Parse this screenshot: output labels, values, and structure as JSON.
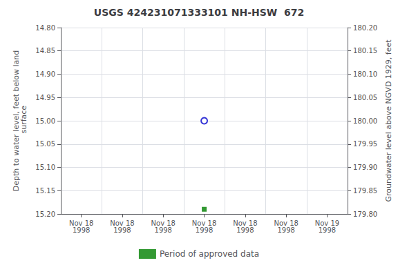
{
  "chart_data": {
    "type": "scatter",
    "title": "USGS 424231071333101 NH-HSW  672",
    "ylabel": "Depth to water level, feet below land\n surface",
    "y2label": "Groundwater level above NGVD 1929, feet",
    "categories": [
      "Nov 18\n1998",
      "Nov 18\n1998",
      "Nov 18\n1998",
      "Nov 18\n1998",
      "Nov 18\n1998",
      "Nov 18\n1998",
      "Nov 19\n1998"
    ],
    "series": [
      {
        "color": "#0000cc",
        "marker": "circle_open",
        "values": [
          null,
          null,
          null,
          15.0,
          null,
          null,
          null
        ]
      },
      {
        "name": "Period of approved data",
        "color": "#008000",
        "marker": "square",
        "values": [
          null,
          null,
          null,
          15.19,
          null,
          null,
          null
        ]
      }
    ],
    "ylim": [
      15.2,
      14.8
    ],
    "yticks": [
      {
        "value": 14.8,
        "label": "14.80"
      },
      {
        "value": 14.85,
        "label": "14.85"
      },
      {
        "value": 14.9,
        "label": "14.90"
      },
      {
        "value": 14.95,
        "label": "14.95"
      },
      {
        "value": 15.0,
        "label": "15.00"
      },
      {
        "value": 15.05,
        "label": "15.05"
      },
      {
        "value": 15.1,
        "label": "15.10"
      },
      {
        "value": 15.15,
        "label": "15.15"
      },
      {
        "value": 15.2,
        "label": "15.20"
      }
    ],
    "y2lim": [
      179.8,
      180.2
    ],
    "y2ticks": [
      {
        "value": 180.2,
        "label": "180.20"
      },
      {
        "value": 180.15,
        "label": "180.15"
      },
      {
        "value": 180.1,
        "label": "180.10"
      },
      {
        "value": 180.05,
        "label": "180.05"
      },
      {
        "value": 180.0,
        "label": "180.00"
      },
      {
        "value": 179.95,
        "label": "179.95"
      },
      {
        "value": 179.9,
        "label": "179.90"
      },
      {
        "value": 179.85,
        "label": "179.85"
      },
      {
        "value": 179.8,
        "label": "179.80"
      }
    ],
    "grid": true,
    "legend": "bottom"
  }
}
